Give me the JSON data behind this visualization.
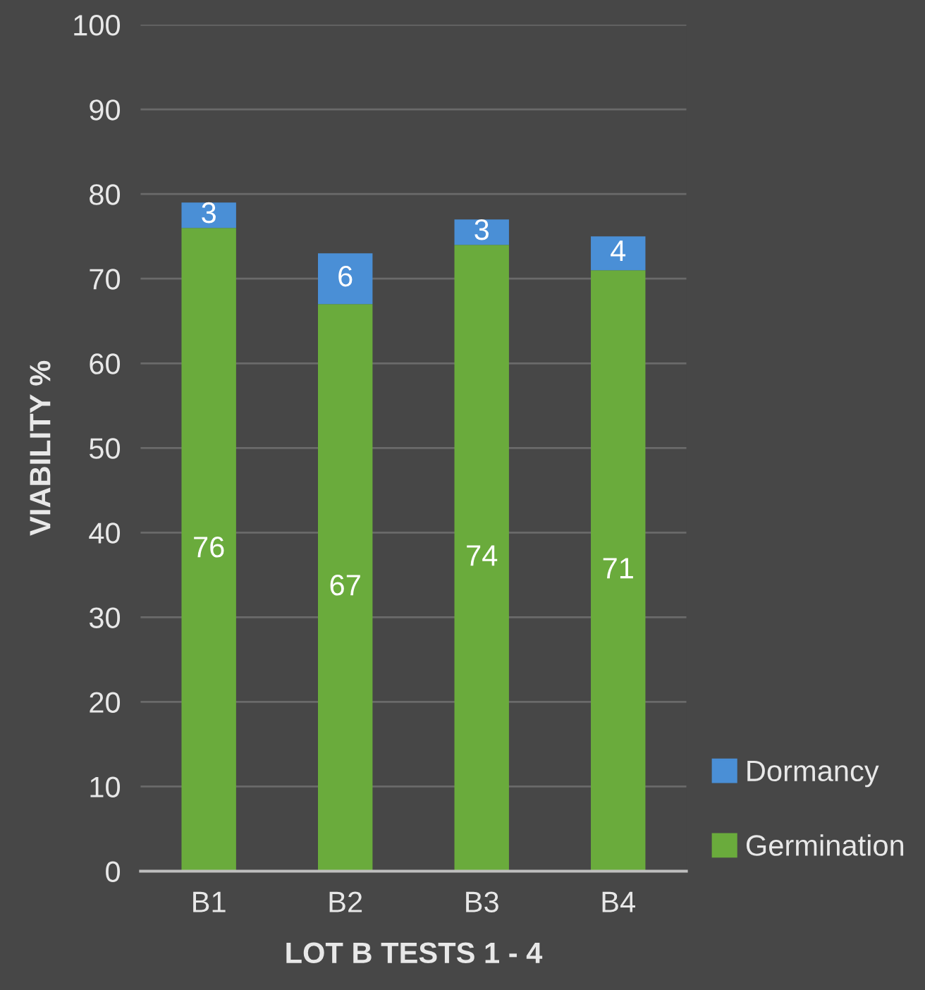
{
  "chart_data": {
    "type": "bar",
    "stacked": true,
    "xlabel": "LOT B TESTS 1 - 4",
    "ylabel": "VIABILITY %",
    "categories": [
      "B1",
      "B2",
      "B3",
      "B4"
    ],
    "series": [
      {
        "name": "Germination",
        "color": "#6aab3c",
        "values": [
          76,
          67,
          74,
          71
        ]
      },
      {
        "name": "Dormancy",
        "color": "#4a8fd6",
        "values": [
          3,
          6,
          3,
          4
        ]
      }
    ],
    "ylim": [
      0,
      100
    ],
    "yticks": [
      0,
      10,
      20,
      30,
      40,
      50,
      60,
      70,
      80,
      90,
      100
    ],
    "grid": "y",
    "legend": "bottom right",
    "data_labels": true
  }
}
